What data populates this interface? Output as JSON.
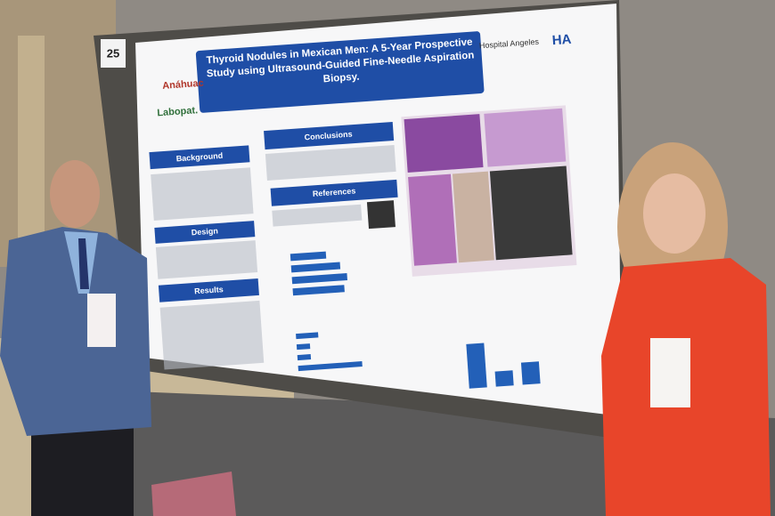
{
  "board_number": "25",
  "poster": {
    "title": "Thyroid Nodules in Mexican Men: A 5-Year Prospective Study using Ultrasound-Guided Fine-Needle Aspiration Biopsy.",
    "logos": [
      "Anáhuac",
      "Labopat.",
      "Hospital Angeles",
      "HA"
    ],
    "sections": [
      "Background",
      "Design",
      "Results",
      "Conclusions",
      "References"
    ]
  }
}
